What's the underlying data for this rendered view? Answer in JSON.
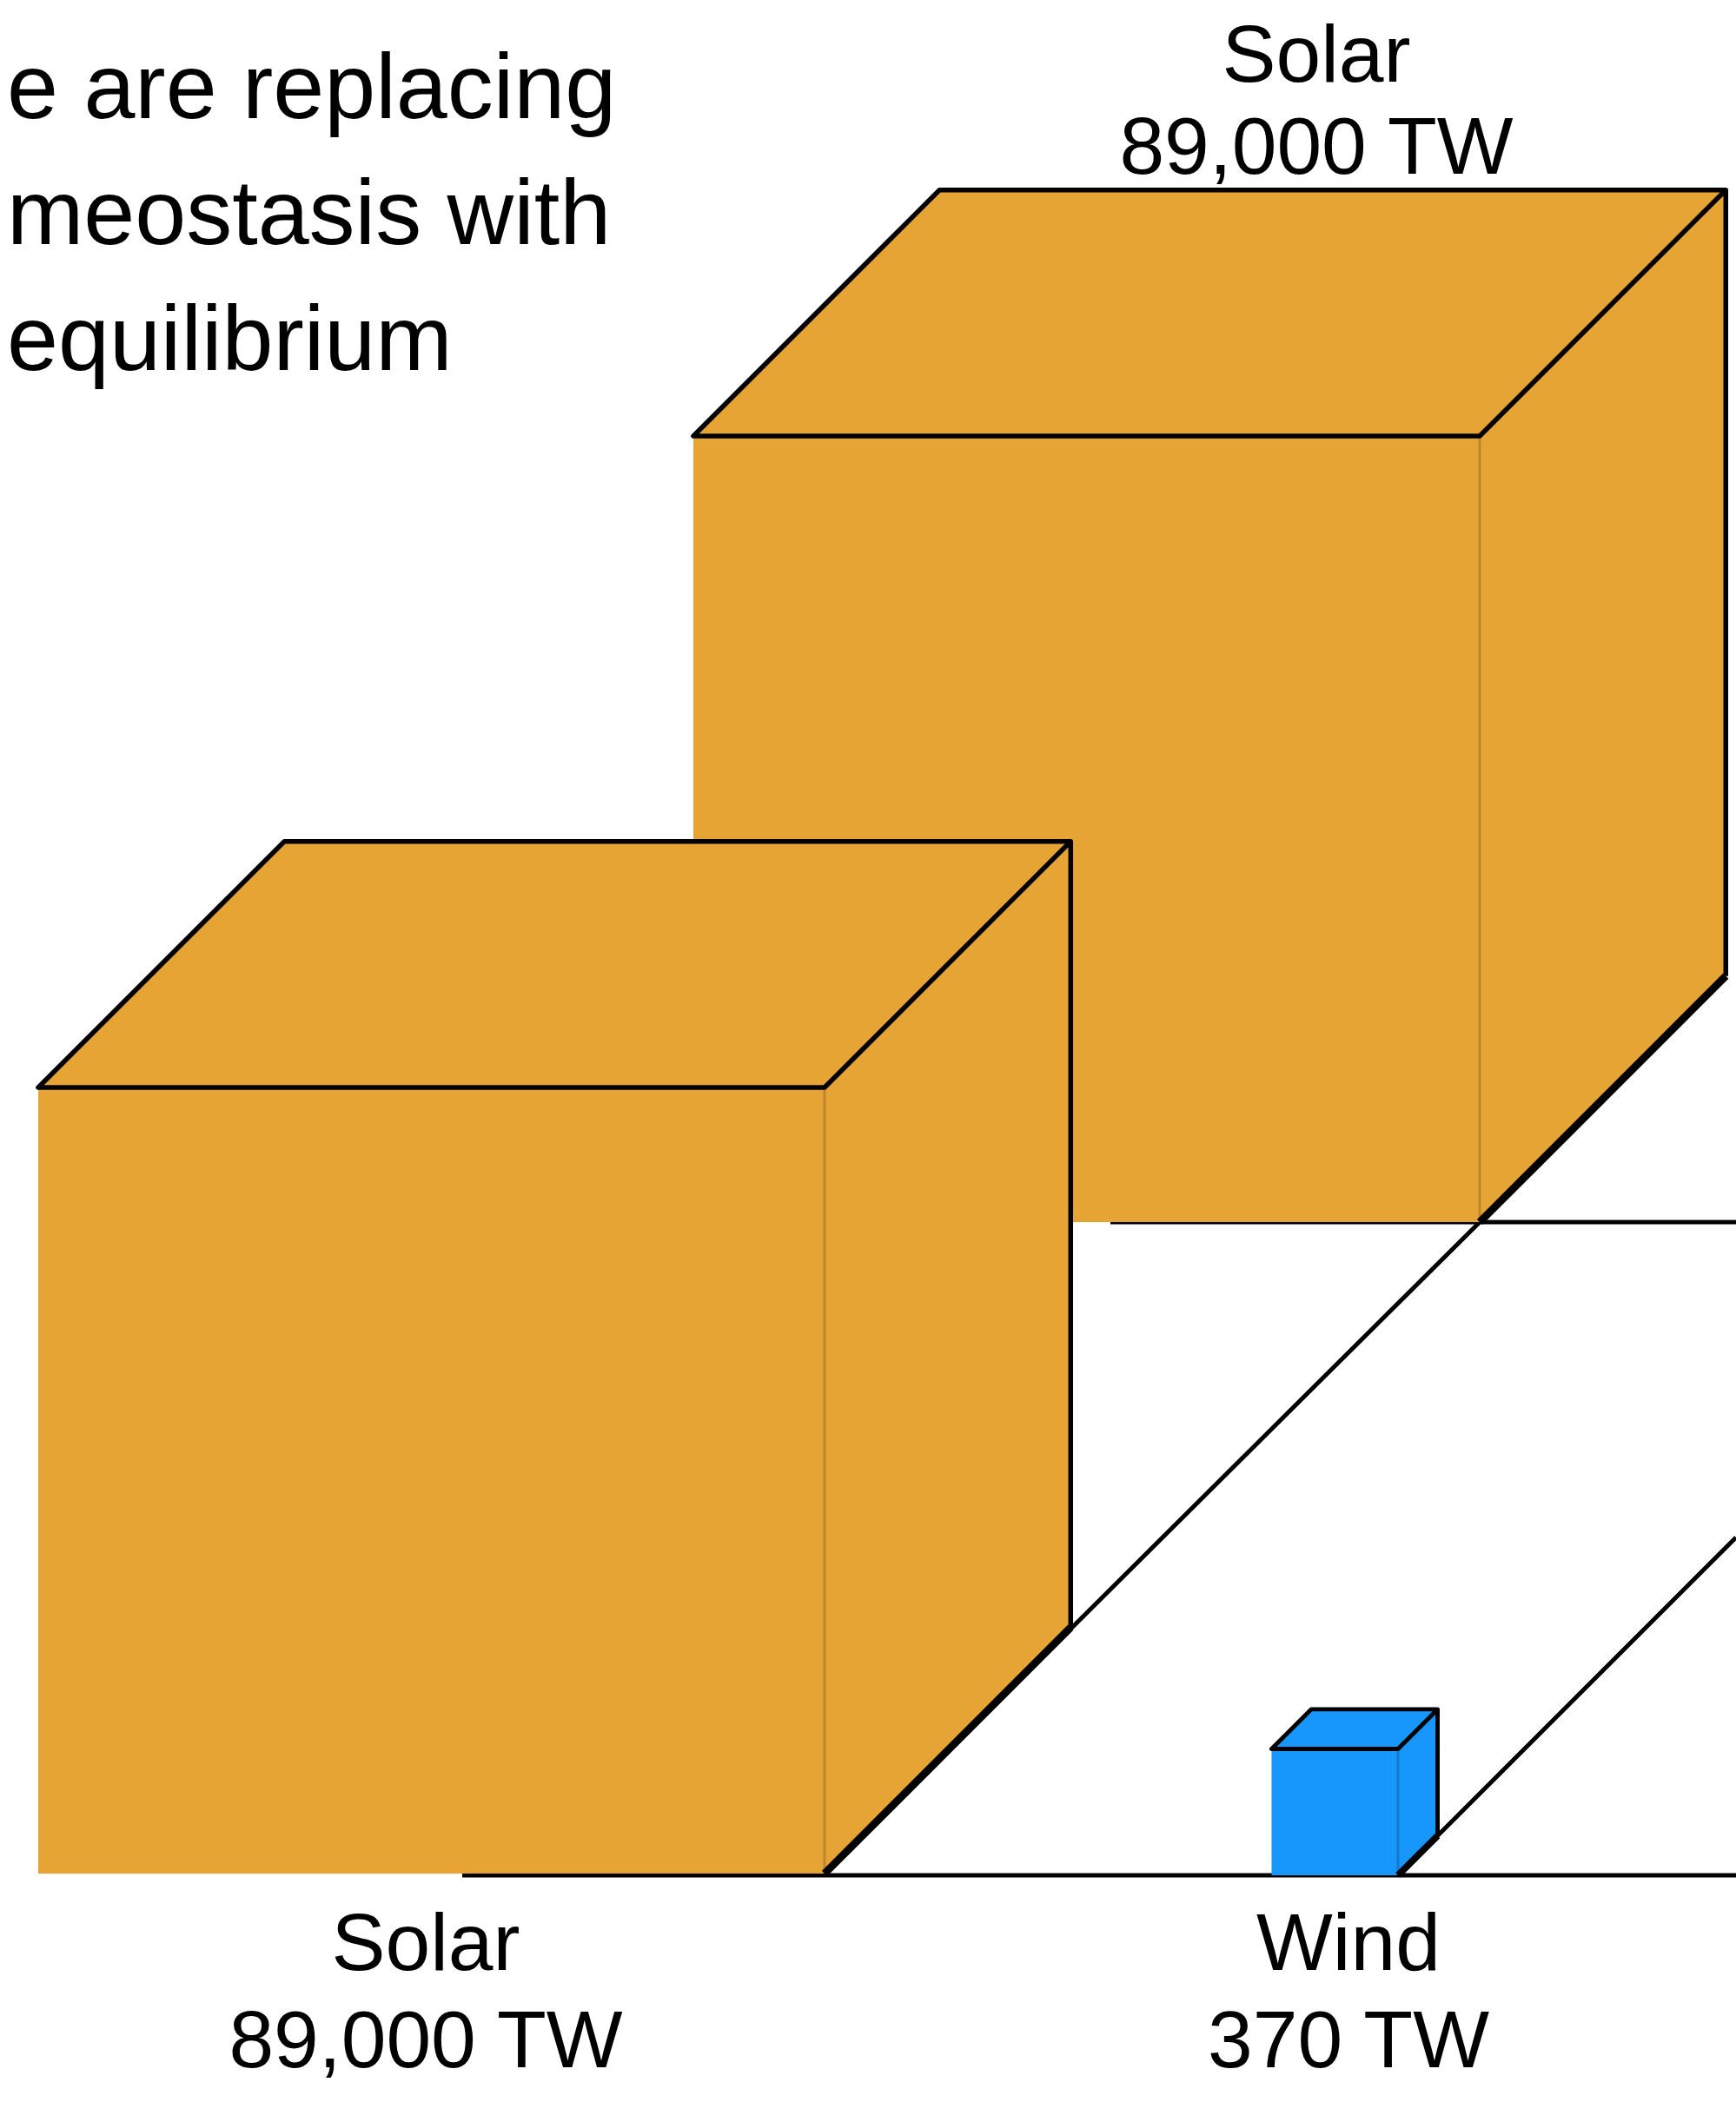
{
  "chart_data": {
    "type": "other",
    "title": "e are replacing meostasis with equilibrium",
    "categories": [
      "Solar",
      "Solar",
      "Wind"
    ],
    "values": [
      89000,
      89000,
      370
    ],
    "colors": [
      "#e6a434",
      "#e6a434",
      "#1796fc"
    ],
    "value_labels": [
      "89,000 TW",
      "89,000 TW",
      "370 TW"
    ]
  }
}
